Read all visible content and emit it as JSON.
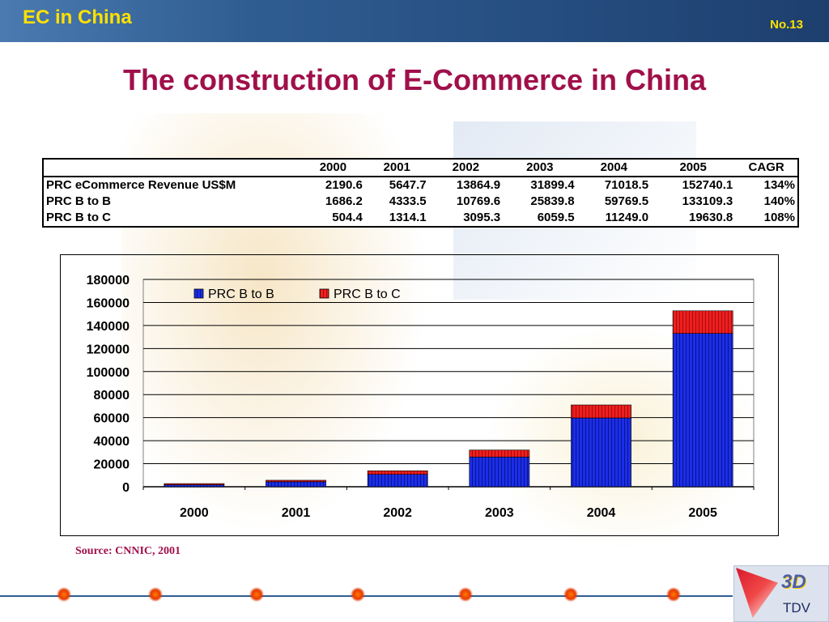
{
  "header": {
    "title": "EC in China",
    "slide_no": "No.13"
  },
  "main_title": "The construction of E-Commerce in China",
  "table": {
    "columns": [
      "",
      "2000",
      "2001",
      "2002",
      "2003",
      "2004",
      "2005",
      "CAGR"
    ],
    "rows": [
      {
        "label": "PRC eCommerce Revenue US$M",
        "cells": [
          "2190.6",
          "5647.7",
          "13864.9",
          "31899.4",
          "71018.5",
          "152740.1",
          "134%"
        ]
      },
      {
        "label": "PRC B to B",
        "cells": [
          "1686.2",
          "4333.5",
          "10769.6",
          "25839.8",
          "59769.5",
          "133109.3",
          "140%"
        ]
      },
      {
        "label": "PRC B to C",
        "cells": [
          "504.4",
          "1314.1",
          "3095.3",
          "6059.5",
          "11249.0",
          "19630.8",
          "108%"
        ]
      }
    ]
  },
  "chart_data": {
    "type": "bar",
    "stacked": true,
    "categories": [
      "2000",
      "2001",
      "2002",
      "2003",
      "2004",
      "2005"
    ],
    "series": [
      {
        "name": "PRC B to B",
        "values": [
          1686.2,
          4333.5,
          10769.6,
          25839.8,
          59769.5,
          133109.3
        ],
        "color": "#1b2ee8"
      },
      {
        "name": "PRC B to C",
        "values": [
          504.4,
          1314.1,
          3095.3,
          6059.5,
          11249.0,
          19630.8
        ],
        "color": "#ee1f1f"
      }
    ],
    "ylim": [
      0,
      180000
    ],
    "yticks": [
      "0",
      "20000",
      "40000",
      "60000",
      "80000",
      "100000",
      "120000",
      "140000",
      "160000",
      "180000"
    ],
    "grid": true,
    "legend": "top-left"
  },
  "source": "Source: CNNIC, 2001",
  "logo": {
    "mark": "3D",
    "name": "TDV"
  },
  "colors": {
    "title": "#a0104a",
    "header_text": "#ffe100",
    "header_bar": "#2f5d92"
  }
}
